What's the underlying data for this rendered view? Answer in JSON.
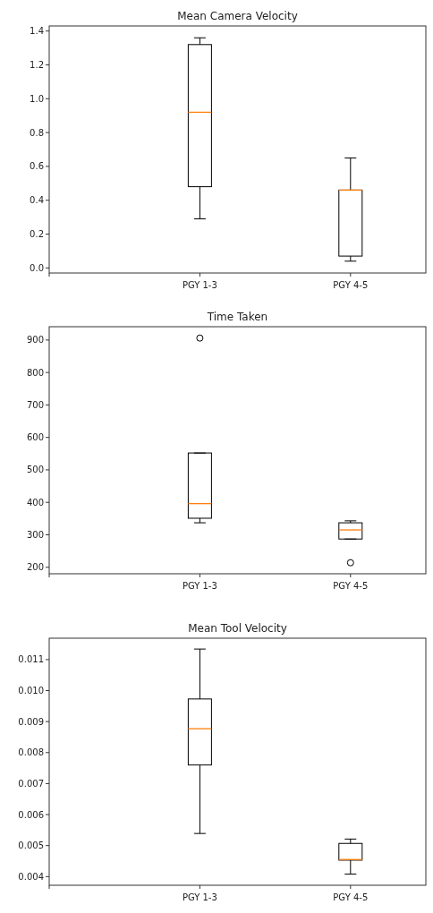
{
  "chart_data": [
    {
      "type": "box",
      "title": "Mean Camera Velocity",
      "categories": [
        null,
        "PGY 1-3",
        "PGY 4-5"
      ],
      "boxes": [
        null,
        {
          "low": 0.29,
          "q1": 0.48,
          "median": 0.92,
          "q3": 1.32,
          "high": 1.36
        },
        {
          "low": 0.04,
          "q1": 0.07,
          "median": 0.46,
          "q3": 0.46,
          "high": 0.65
        }
      ],
      "ylim": [
        -0.03,
        1.43
      ],
      "yticks": [
        {
          "value": 0,
          "label": "0.0"
        },
        0.2,
        0.4,
        0.6,
        0.8,
        {
          "value": 1,
          "label": "1.0"
        },
        1.2,
        1.4
      ],
      "color": "#000000"
    },
    {
      "type": "box",
      "title": "Time Taken",
      "categories": [
        null,
        "PGY 1-3",
        "PGY 4-5"
      ],
      "boxes": [
        null,
        {
          "low": 337,
          "q1": 351,
          "median": 396,
          "q3": 552,
          "high": 552,
          "outliers": [
            906
          ]
        },
        {
          "low": 287,
          "q1": 287,
          "median": 315,
          "q3": 337,
          "high": 343,
          "outliers": [
            214
          ]
        }
      ],
      "ylim": [
        180,
        941
      ],
      "yticks": [
        200,
        300,
        400,
        500,
        600,
        700,
        800,
        900
      ],
      "color": "#000000"
    },
    {
      "type": "box",
      "title": "Mean Tool Velocity",
      "categories": [
        null,
        "PGY 1-3",
        "PGY 4-5"
      ],
      "boxes": [
        null,
        {
          "low": 0.00539,
          "q1": 0.0076,
          "median": 0.00877,
          "q3": 0.00973,
          "high": 0.01134
        },
        {
          "low": 0.00408,
          "q1": 0.00453,
          "median": 0.00455,
          "q3": 0.00507,
          "high": 0.00521
        }
      ],
      "ylim": [
        0.00372,
        0.01169
      ],
      "yticks": [
        {
          "value": 0.004,
          "label": "0.004"
        },
        {
          "value": 0.005,
          "label": "0.005"
        },
        {
          "value": 0.006,
          "label": "0.006"
        },
        {
          "value": 0.007,
          "label": "0.007"
        },
        {
          "value": 0.008,
          "label": "0.008"
        },
        {
          "value": 0.009,
          "label": "0.009"
        },
        {
          "value": 0.01,
          "label": "0.010"
        },
        {
          "value": 0.011,
          "label": "0.011"
        }
      ],
      "color": "#000000"
    }
  ]
}
